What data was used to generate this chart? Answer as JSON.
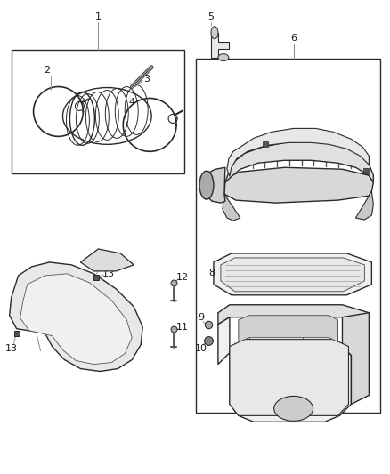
{
  "background": "#ffffff",
  "lc": "#2a2a2a",
  "lc_light": "#888888",
  "lc_mid": "#555555",
  "fig_width": 4.38,
  "fig_height": 5.33,
  "dpi": 100
}
